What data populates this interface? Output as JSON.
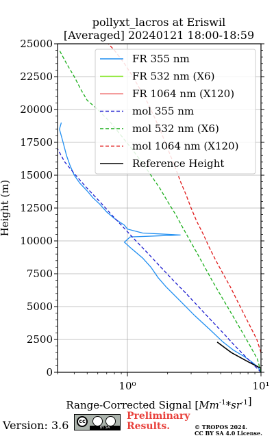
{
  "chart_data": {
    "type": "line",
    "title": "pollyxt_lacros at Eriswil",
    "subtitle": "[Averaged] 20240121 18:00-18:59",
    "xlabel": "Range-Corrected Signal [Mm^{-1}*sr^{-1}]",
    "ylabel": "Height (m)",
    "xscale": "log",
    "xlim": [
      0.3,
      10
    ],
    "ylim": [
      0,
      25000
    ],
    "xticks": [
      {
        "value": 1,
        "label": "10⁰"
      },
      {
        "value": 10,
        "label": "10¹"
      }
    ],
    "yticks": [
      0,
      2500,
      5000,
      7500,
      10000,
      12500,
      15000,
      17500,
      20000,
      22500,
      25000
    ],
    "grid": true,
    "legend_position": "upper right",
    "series": [
      {
        "name": "FR 355 nm",
        "color": "#1f8ef1",
        "style": "solid",
        "points": [
          [
            10,
            0
          ],
          [
            9.5,
            400
          ],
          [
            8.5,
            800
          ],
          [
            7.5,
            1200
          ],
          [
            6.2,
            1700
          ],
          [
            5.2,
            2300
          ],
          [
            4.2,
            3200
          ],
          [
            3.2,
            4300
          ],
          [
            2.5,
            5400
          ],
          [
            1.95,
            6500
          ],
          [
            1.7,
            7200
          ],
          [
            1.5,
            8000
          ],
          [
            1.3,
            8700
          ],
          [
            1.05,
            9500
          ],
          [
            0.95,
            9900
          ],
          [
            1.05,
            10300
          ],
          [
            2.5,
            10450
          ],
          [
            1.3,
            10600
          ],
          [
            1.0,
            10900
          ],
          [
            0.95,
            11200
          ],
          [
            0.8,
            11700
          ],
          [
            0.7,
            12200
          ],
          [
            0.62,
            12800
          ],
          [
            0.55,
            13300
          ],
          [
            0.5,
            13800
          ],
          [
            0.44,
            14400
          ],
          [
            0.4,
            15000
          ],
          [
            0.37,
            15800
          ],
          [
            0.35,
            16500
          ],
          [
            0.33,
            17500
          ],
          [
            0.31,
            18500
          ],
          [
            0.32,
            19000
          ]
        ]
      },
      {
        "name": "FR 532 nm (X6)",
        "color": "#7de619",
        "style": "solid",
        "points": []
      },
      {
        "name": "FR 1064 nm (X120)",
        "color": "#f07d7d",
        "style": "solid",
        "points": []
      },
      {
        "name": "mol 355 nm",
        "color": "#1c1ccf",
        "style": "dashed",
        "points": [
          [
            10,
            0
          ],
          [
            8,
            1000
          ],
          [
            6.4,
            2000
          ],
          [
            5.2,
            3000
          ],
          [
            4.2,
            4000
          ],
          [
            3.4,
            5000
          ],
          [
            2.75,
            6000
          ],
          [
            2.2,
            7000
          ],
          [
            1.78,
            8000
          ],
          [
            1.44,
            9000
          ],
          [
            1.16,
            10000
          ],
          [
            0.94,
            11000
          ],
          [
            0.76,
            12000
          ],
          [
            0.62,
            13000
          ],
          [
            0.5,
            14000
          ],
          [
            0.41,
            15000
          ],
          [
            0.34,
            16000
          ],
          [
            0.3,
            17000
          ]
        ]
      },
      {
        "name": "mol 532 nm (X6)",
        "color": "#1aae1a",
        "style": "dashed",
        "points": [
          [
            10,
            0
          ],
          [
            9.4,
            1000
          ],
          [
            8.3,
            2000
          ],
          [
            7.3,
            3000
          ],
          [
            6.4,
            4000
          ],
          [
            5.6,
            5000
          ],
          [
            4.9,
            6000
          ],
          [
            4.3,
            7000
          ],
          [
            3.8,
            8000
          ],
          [
            3.35,
            9000
          ],
          [
            2.95,
            10000
          ],
          [
            2.6,
            11000
          ],
          [
            2.3,
            12000
          ],
          [
            2.0,
            13000
          ],
          [
            1.75,
            14000
          ],
          [
            1.5,
            15000
          ],
          [
            1.28,
            16000
          ],
          [
            1.08,
            17000
          ],
          [
            0.9,
            18000
          ],
          [
            0.75,
            19000
          ],
          [
            0.6,
            20000
          ],
          [
            0.5,
            20700
          ],
          [
            0.45,
            21500
          ],
          [
            0.4,
            22500
          ],
          [
            0.35,
            23500
          ],
          [
            0.31,
            24500
          ]
        ]
      },
      {
        "name": "mol 1064 nm (X120)",
        "color": "#e01717",
        "style": "dashed",
        "points": [
          [
            10,
            1500
          ],
          [
            9.3,
            2500
          ],
          [
            8.3,
            3500
          ],
          [
            7.4,
            4500
          ],
          [
            6.6,
            5500
          ],
          [
            5.9,
            6500
          ],
          [
            5.2,
            7500
          ],
          [
            4.6,
            8500
          ],
          [
            4.1,
            9500
          ],
          [
            3.7,
            10500
          ],
          [
            3.3,
            11500
          ],
          [
            3.0,
            12500
          ],
          [
            2.75,
            13500
          ],
          [
            2.5,
            14500
          ],
          [
            2.3,
            15500
          ],
          [
            2.1,
            16500
          ],
          [
            1.92,
            17500
          ],
          [
            1.75,
            18500
          ],
          [
            1.58,
            19500
          ],
          [
            1.42,
            20500
          ],
          [
            1.25,
            21500
          ],
          [
            1.1,
            22500
          ],
          [
            0.95,
            23500
          ],
          [
            0.8,
            24500
          ],
          [
            0.72,
            25000
          ]
        ]
      },
      {
        "name": "Reference Height",
        "color": "#000000",
        "style": "solid",
        "points": [
          [
            4.7,
            2300
          ],
          [
            6,
            1500
          ],
          [
            8,
            800
          ],
          [
            10,
            300
          ]
        ]
      }
    ]
  },
  "footer": {
    "version": "Version: 3.6",
    "cc_strip": "BY   SA",
    "prelim_line1": "Preliminary",
    "prelim_line2": "Results.",
    "copy_line1": "© TROPOS 2024.",
    "copy_line2": "CC BY SA 4.0 License."
  }
}
